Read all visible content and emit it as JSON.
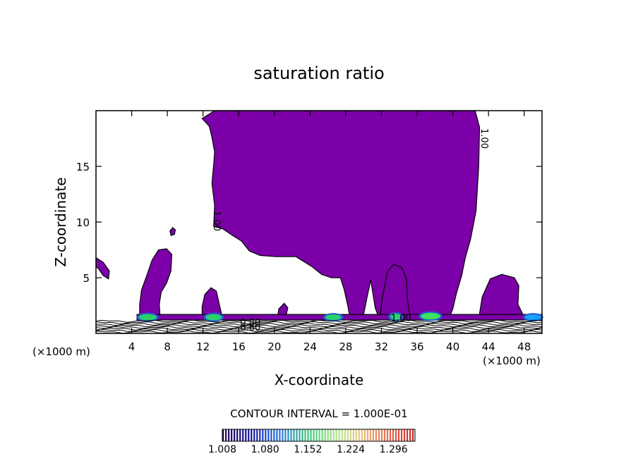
{
  "chart_data": {
    "type": "heatmap",
    "title": "saturation ratio",
    "xlabel": "X-coordinate",
    "ylabel": "Z-coordinate",
    "x_unit_left": "(×1000 m)",
    "x_unit_right": "(×1000 m)",
    "xlim": [
      0,
      50
    ],
    "ylim": [
      0,
      20
    ],
    "x_ticks": [
      4,
      8,
      12,
      16,
      20,
      24,
      28,
      32,
      36,
      40,
      44,
      48
    ],
    "x_tick_labels": [
      "4",
      "8",
      "12",
      "16",
      "20",
      "24",
      "28",
      "32",
      "36",
      "40",
      "44",
      "48"
    ],
    "y_ticks": [
      5,
      10,
      15
    ],
    "y_tick_labels": [
      "5",
      "10",
      "15"
    ],
    "contour_interval_text": "CONTOUR INTERVAL = 1.000E-01",
    "colorbar": {
      "min": 1.008,
      "max": 1.332,
      "tick_values": [
        1.008,
        1.08,
        1.152,
        1.224,
        1.296
      ],
      "tick_labels": [
        "1.008",
        "1.080",
        "1.152",
        "1.224",
        "1.296"
      ]
    },
    "contour_labels": [
      {
        "text": "1.00",
        "x": 13.2,
        "y": 10.1,
        "rotate": 90
      },
      {
        "text": "1.00",
        "x": 43.2,
        "y": 17.5,
        "rotate": 90
      },
      {
        "text": "1.00",
        "x": 34.2,
        "y": 1.1,
        "rotate": 0
      },
      {
        "text": "0.80",
        "x": 17.3,
        "y": 0.7,
        "rotate": 0
      },
      {
        "text": "0.60",
        "x": 17.3,
        "y": 0.25,
        "rotate": 0
      }
    ],
    "supersaturated_regions": [
      {
        "name": "main-upper-plume",
        "fill": "#7b00a8",
        "outline": [
          [
            13.3,
            20
          ],
          [
            42.5,
            20
          ],
          [
            43.0,
            18.5
          ],
          [
            42.9,
            15.0
          ],
          [
            42.6,
            11.0
          ],
          [
            42.0,
            8.5
          ],
          [
            41.4,
            6.8
          ],
          [
            41.0,
            5.2
          ],
          [
            40.4,
            3.6
          ],
          [
            40.0,
            2.2
          ],
          [
            39.6,
            1.4
          ],
          [
            36.0,
            1.3
          ],
          [
            33.0,
            1.3
          ],
          [
            31.8,
            1.2
          ],
          [
            31.3,
            2.3
          ],
          [
            30.8,
            4.8
          ],
          [
            30.4,
            3.3
          ],
          [
            29.9,
            1.3
          ],
          [
            28.5,
            1.3
          ],
          [
            28.2,
            2.6
          ],
          [
            27.8,
            4.0
          ],
          [
            27.4,
            5.0
          ],
          [
            26.4,
            5.0
          ],
          [
            25.3,
            5.3
          ],
          [
            24.2,
            6.0
          ],
          [
            22.4,
            6.9
          ],
          [
            20.2,
            6.9
          ],
          [
            18.4,
            7.0
          ],
          [
            17.2,
            7.4
          ],
          [
            16.3,
            8.3
          ],
          [
            15.3,
            8.8
          ],
          [
            14.2,
            9.4
          ],
          [
            13.2,
            9.6
          ],
          [
            13.3,
            11.5
          ],
          [
            13.0,
            13.5
          ],
          [
            13.2,
            15.2
          ],
          [
            13.3,
            16.3
          ],
          [
            13.0,
            17.6
          ],
          [
            12.7,
            18.6
          ],
          [
            11.9,
            19.3
          ],
          [
            13.3,
            20
          ]
        ]
      },
      {
        "name": "left-edge-blob",
        "fill": "#7b00a8",
        "outline": [
          [
            0,
            6.8
          ],
          [
            0.8,
            6.4
          ],
          [
            1.5,
            5.6
          ],
          [
            1.4,
            4.9
          ],
          [
            0.8,
            5.2
          ],
          [
            0.3,
            5.8
          ],
          [
            0,
            6.0
          ]
        ]
      },
      {
        "name": "column-6km",
        "fill": "#7b00a8",
        "outline": [
          [
            4.9,
            1.3
          ],
          [
            4.9,
            2.6
          ],
          [
            5.1,
            3.9
          ],
          [
            5.7,
            5.2
          ],
          [
            6.3,
            6.6
          ],
          [
            7.0,
            7.5
          ],
          [
            7.9,
            7.6
          ],
          [
            8.5,
            7.1
          ],
          [
            8.4,
            5.6
          ],
          [
            7.9,
            4.5
          ],
          [
            7.3,
            3.7
          ],
          [
            7.1,
            2.6
          ],
          [
            7.2,
            1.3
          ]
        ]
      },
      {
        "name": "blob-9km",
        "fill": "#7b00a8",
        "outline": [
          [
            8.3,
            9.2
          ],
          [
            8.6,
            9.5
          ],
          [
            8.9,
            9.3
          ],
          [
            8.8,
            8.9
          ],
          [
            8.4,
            8.8
          ]
        ]
      },
      {
        "name": "column-13km",
        "fill": "#7b00a8",
        "outline": [
          [
            11.9,
            1.3
          ],
          [
            11.9,
            2.4
          ],
          [
            12.2,
            3.5
          ],
          [
            12.9,
            4.1
          ],
          [
            13.5,
            3.8
          ],
          [
            13.8,
            2.7
          ],
          [
            14.2,
            1.3
          ]
        ]
      },
      {
        "name": "blob-20km",
        "fill": "#7b00a8",
        "outline": [
          [
            20.3,
            1.2
          ],
          [
            20.5,
            2.2
          ],
          [
            21.1,
            2.7
          ],
          [
            21.5,
            2.3
          ],
          [
            21.2,
            1.2
          ]
        ]
      },
      {
        "name": "column-33km",
        "fill": "#7b00a8",
        "outline": [
          [
            31.8,
            1.2
          ],
          [
            32.1,
            3.2
          ],
          [
            32.7,
            5.6
          ],
          [
            33.4,
            6.2
          ],
          [
            34.3,
            5.9
          ],
          [
            34.8,
            4.9
          ],
          [
            34.9,
            3.2
          ],
          [
            35.2,
            1.4
          ]
        ]
      },
      {
        "name": "column-45km",
        "fill": "#7b00a8",
        "outline": [
          [
            42.9,
            1.3
          ],
          [
            43.3,
            3.3
          ],
          [
            44.2,
            4.9
          ],
          [
            45.5,
            5.3
          ],
          [
            46.9,
            5.0
          ],
          [
            47.4,
            4.3
          ],
          [
            47.3,
            2.6
          ],
          [
            48.1,
            1.3
          ]
        ]
      },
      {
        "name": "surface-band",
        "fill": "#7b00a8",
        "outline": [
          [
            4.6,
            1.2
          ],
          [
            50,
            1.2
          ],
          [
            50,
            1.7
          ],
          [
            4.6,
            1.7
          ]
        ]
      }
    ],
    "high_value_cores": [
      {
        "x": 5.8,
        "y": 1.45,
        "rx": 1.0,
        "ry": 0.28,
        "color": "#2ad06a"
      },
      {
        "x": 13.2,
        "y": 1.45,
        "rx": 0.9,
        "ry": 0.28,
        "color": "#2ad06a"
      },
      {
        "x": 26.6,
        "y": 1.45,
        "rx": 0.9,
        "ry": 0.25,
        "color": "#2ad06a"
      },
      {
        "x": 33.6,
        "y": 1.5,
        "rx": 0.6,
        "ry": 0.28,
        "color": "#2ad06a"
      },
      {
        "x": 37.5,
        "y": 1.55,
        "rx": 1.1,
        "ry": 0.3,
        "color": "#3ce05a"
      },
      {
        "x": 49.0,
        "y": 1.45,
        "rx": 0.9,
        "ry": 0.25,
        "color": "#1aa0ff"
      }
    ],
    "surface_contour_count": 8
  }
}
